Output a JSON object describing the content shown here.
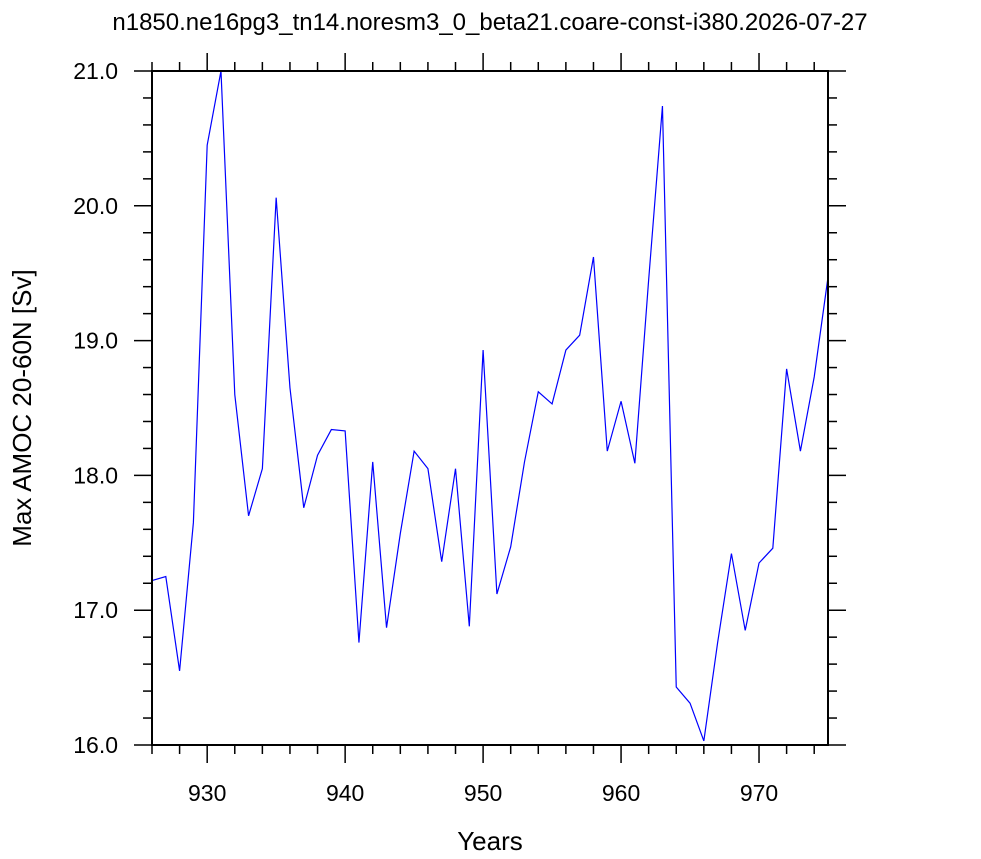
{
  "chart_data": {
    "type": "line",
    "title": "n1850.ne16pg3_tn14.noresm3_0_beta21.coare-const-i380.2026-07-27",
    "xlabel": "Years",
    "ylabel": "Max AMOC 20-60N [Sv]",
    "xlim": [
      926,
      975
    ],
    "ylim": [
      16.0,
      21.0
    ],
    "x_ticks": [
      930,
      940,
      950,
      960,
      970
    ],
    "y_ticks": [
      16.0,
      17.0,
      18.0,
      19.0,
      20.0,
      21.0
    ],
    "x_tick_labels": [
      "930",
      "940",
      "950",
      "960",
      "970"
    ],
    "y_tick_labels": [
      "16.0",
      "17.0",
      "18.0",
      "19.0",
      "20.0",
      "21.0"
    ],
    "line_color": "#0000ff",
    "series": [
      {
        "x": [
          926,
          927,
          928,
          929,
          930,
          931,
          932,
          933,
          934,
          935,
          936,
          937,
          938,
          939,
          940,
          941,
          942,
          943,
          944,
          945,
          946,
          947,
          948,
          949,
          950,
          951,
          952,
          953,
          954,
          955,
          956,
          957,
          958,
          959,
          960,
          961,
          962,
          963,
          964,
          965,
          966,
          967,
          968,
          969,
          970,
          971,
          972,
          973,
          974,
          975
        ],
        "values": [
          17.22,
          17.25,
          16.55,
          17.65,
          20.45,
          21.0,
          18.6,
          17.7,
          18.05,
          20.06,
          18.65,
          17.76,
          18.15,
          18.34,
          18.33,
          16.76,
          18.1,
          16.87,
          17.57,
          18.18,
          18.05,
          17.36,
          18.05,
          16.88,
          18.93,
          17.12,
          17.47,
          18.1,
          18.62,
          18.53,
          18.93,
          19.04,
          19.62,
          18.18,
          18.55,
          18.09,
          19.45,
          20.74,
          16.43,
          16.31,
          16.03,
          16.76,
          17.42,
          16.85,
          17.35,
          17.46,
          18.79,
          18.18,
          18.73,
          19.47
        ]
      }
    ]
  }
}
